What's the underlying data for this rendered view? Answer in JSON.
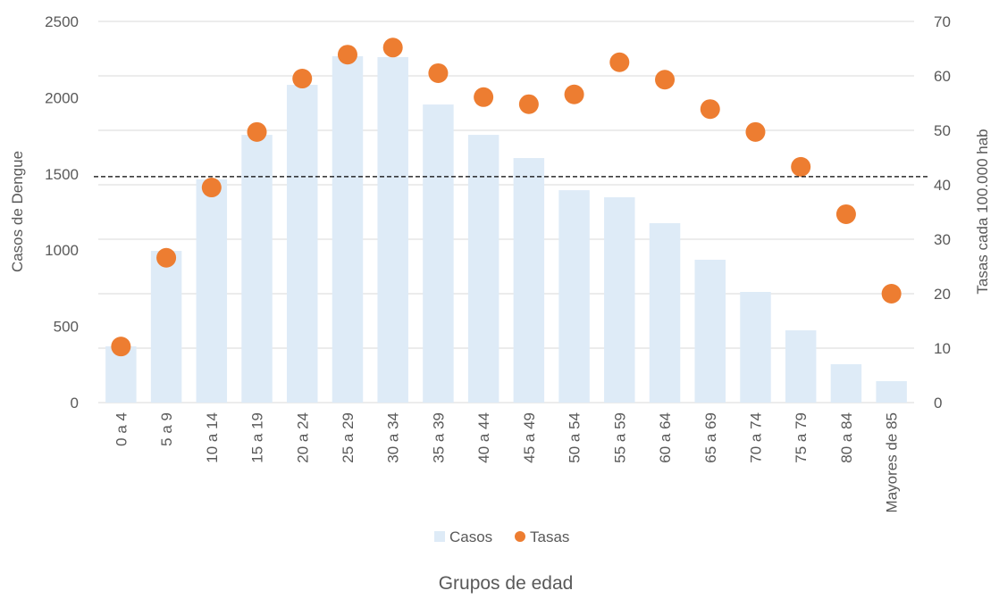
{
  "chart_data": {
    "type": "bar-scatter",
    "x_label": "Grupos de edad",
    "y_label": "Casos de Dengue",
    "y2_label": "Tasas  cada 100.000 hab",
    "categories": [
      "0 a 4",
      "5 a 9",
      "10 a 14",
      "15 a 19",
      "20 a 24",
      "25 a 29",
      "30 a 34",
      "35 a 39",
      "40 a 44",
      "45 a 49",
      "50 a 54",
      "55 a 59",
      "60 a 64",
      "65 a 69",
      "70 a  74",
      "75 a 79",
      "80 a 84",
      "Mayores de 85"
    ],
    "series": [
      {
        "name": "Casos",
        "color": "#deebf7",
        "values": [
          369,
          995,
          1464,
          1756,
          2084,
          2272,
          2266,
          1955,
          1756,
          1604,
          1393,
          1347,
          1177,
          937,
          726,
          474,
          252,
          141
        ]
      },
      {
        "name": "Tasas",
        "color": "#ed7d31",
        "axis": "y2",
        "values": [
          10.3,
          26.6,
          39.5,
          49.7,
          59.5,
          63.9,
          65.2,
          60.5,
          56.1,
          54.8,
          56.6,
          62.5,
          59.3,
          53.9,
          49.7,
          43.3,
          34.6,
          20
        ]
      }
    ],
    "reference_line": {
      "value": 41.5,
      "axis": "y2"
    },
    "ylim": [
      0,
      2500
    ],
    "yticks": [
      0,
      500,
      1000,
      1500,
      2000,
      2500
    ],
    "y2lim": [
      0,
      70
    ],
    "y2ticks": [
      0,
      10,
      20,
      30,
      40,
      50,
      60,
      70
    ],
    "grid": true,
    "legend": "bottom"
  }
}
